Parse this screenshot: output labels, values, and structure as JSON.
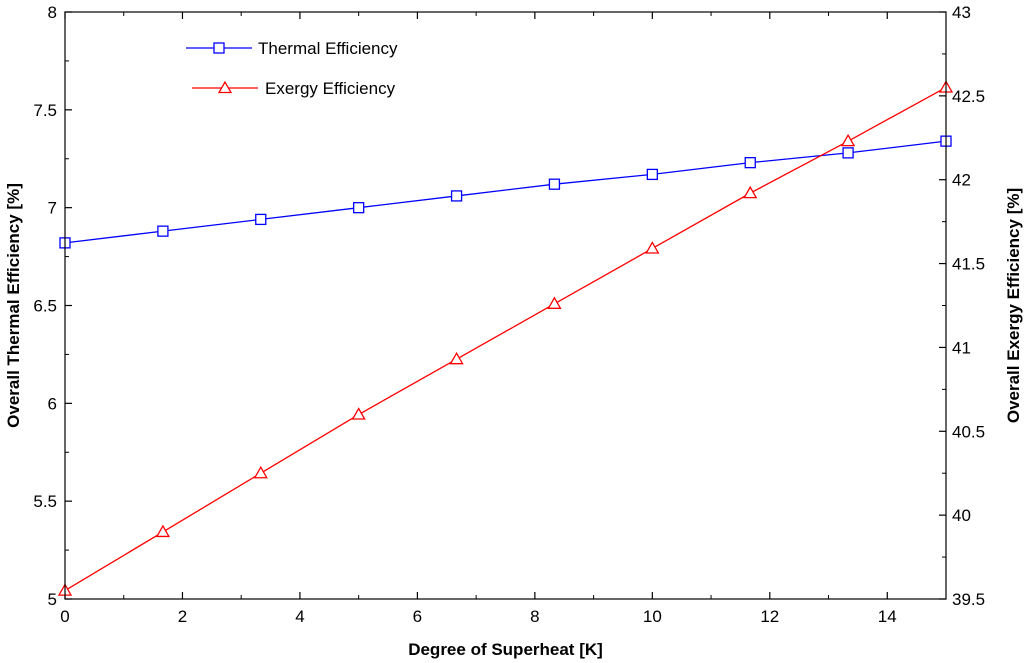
{
  "chart_data": {
    "type": "line",
    "xlabel": "Degree of Superheat [K]",
    "ylabel_left": "Overall Thermal Efficiency [%]",
    "ylabel_right": "Overall Exergy Efficiency [%]",
    "xlim": [
      0,
      15
    ],
    "ylim_left": [
      5,
      8
    ],
    "ylim_right": [
      39.5,
      43
    ],
    "x_ticks": [
      0,
      2,
      4,
      6,
      8,
      10,
      12,
      14
    ],
    "x_tick_labels": [
      "0",
      "2",
      "4",
      "6",
      "8",
      "10",
      "12",
      "14"
    ],
    "y_left_ticks": [
      5,
      5.5,
      6,
      6.5,
      7,
      7.5,
      8
    ],
    "y_left_tick_labels": [
      "5",
      "5.5",
      "6",
      "6.5",
      "7",
      "7.5",
      "8"
    ],
    "y_right_ticks": [
      39.5,
      40,
      40.5,
      41,
      41.5,
      42,
      42.5,
      43
    ],
    "y_right_tick_labels": [
      "39.5",
      "40",
      "40.5",
      "41",
      "41.5",
      "42",
      "42.5",
      "43"
    ],
    "legend_position": "top-left",
    "series": [
      {
        "name": "Thermal Efficiency",
        "axis": "left",
        "color": "#0000ff",
        "marker": "square",
        "x": [
          0,
          1.667,
          3.333,
          5,
          6.667,
          8.333,
          10,
          11.667,
          13.333,
          15
        ],
        "values": [
          6.82,
          6.88,
          6.94,
          7.0,
          7.06,
          7.12,
          7.17,
          7.23,
          7.28,
          7.34
        ]
      },
      {
        "name": "Exergy Efficiency",
        "axis": "right",
        "color": "#ff0000",
        "marker": "triangle",
        "x": [
          0,
          1.667,
          3.333,
          5,
          6.667,
          8.333,
          10,
          11.667,
          13.333,
          15
        ],
        "values": [
          39.55,
          39.9,
          40.25,
          40.6,
          40.93,
          41.26,
          41.59,
          41.92,
          42.23,
          42.55
        ]
      }
    ]
  }
}
